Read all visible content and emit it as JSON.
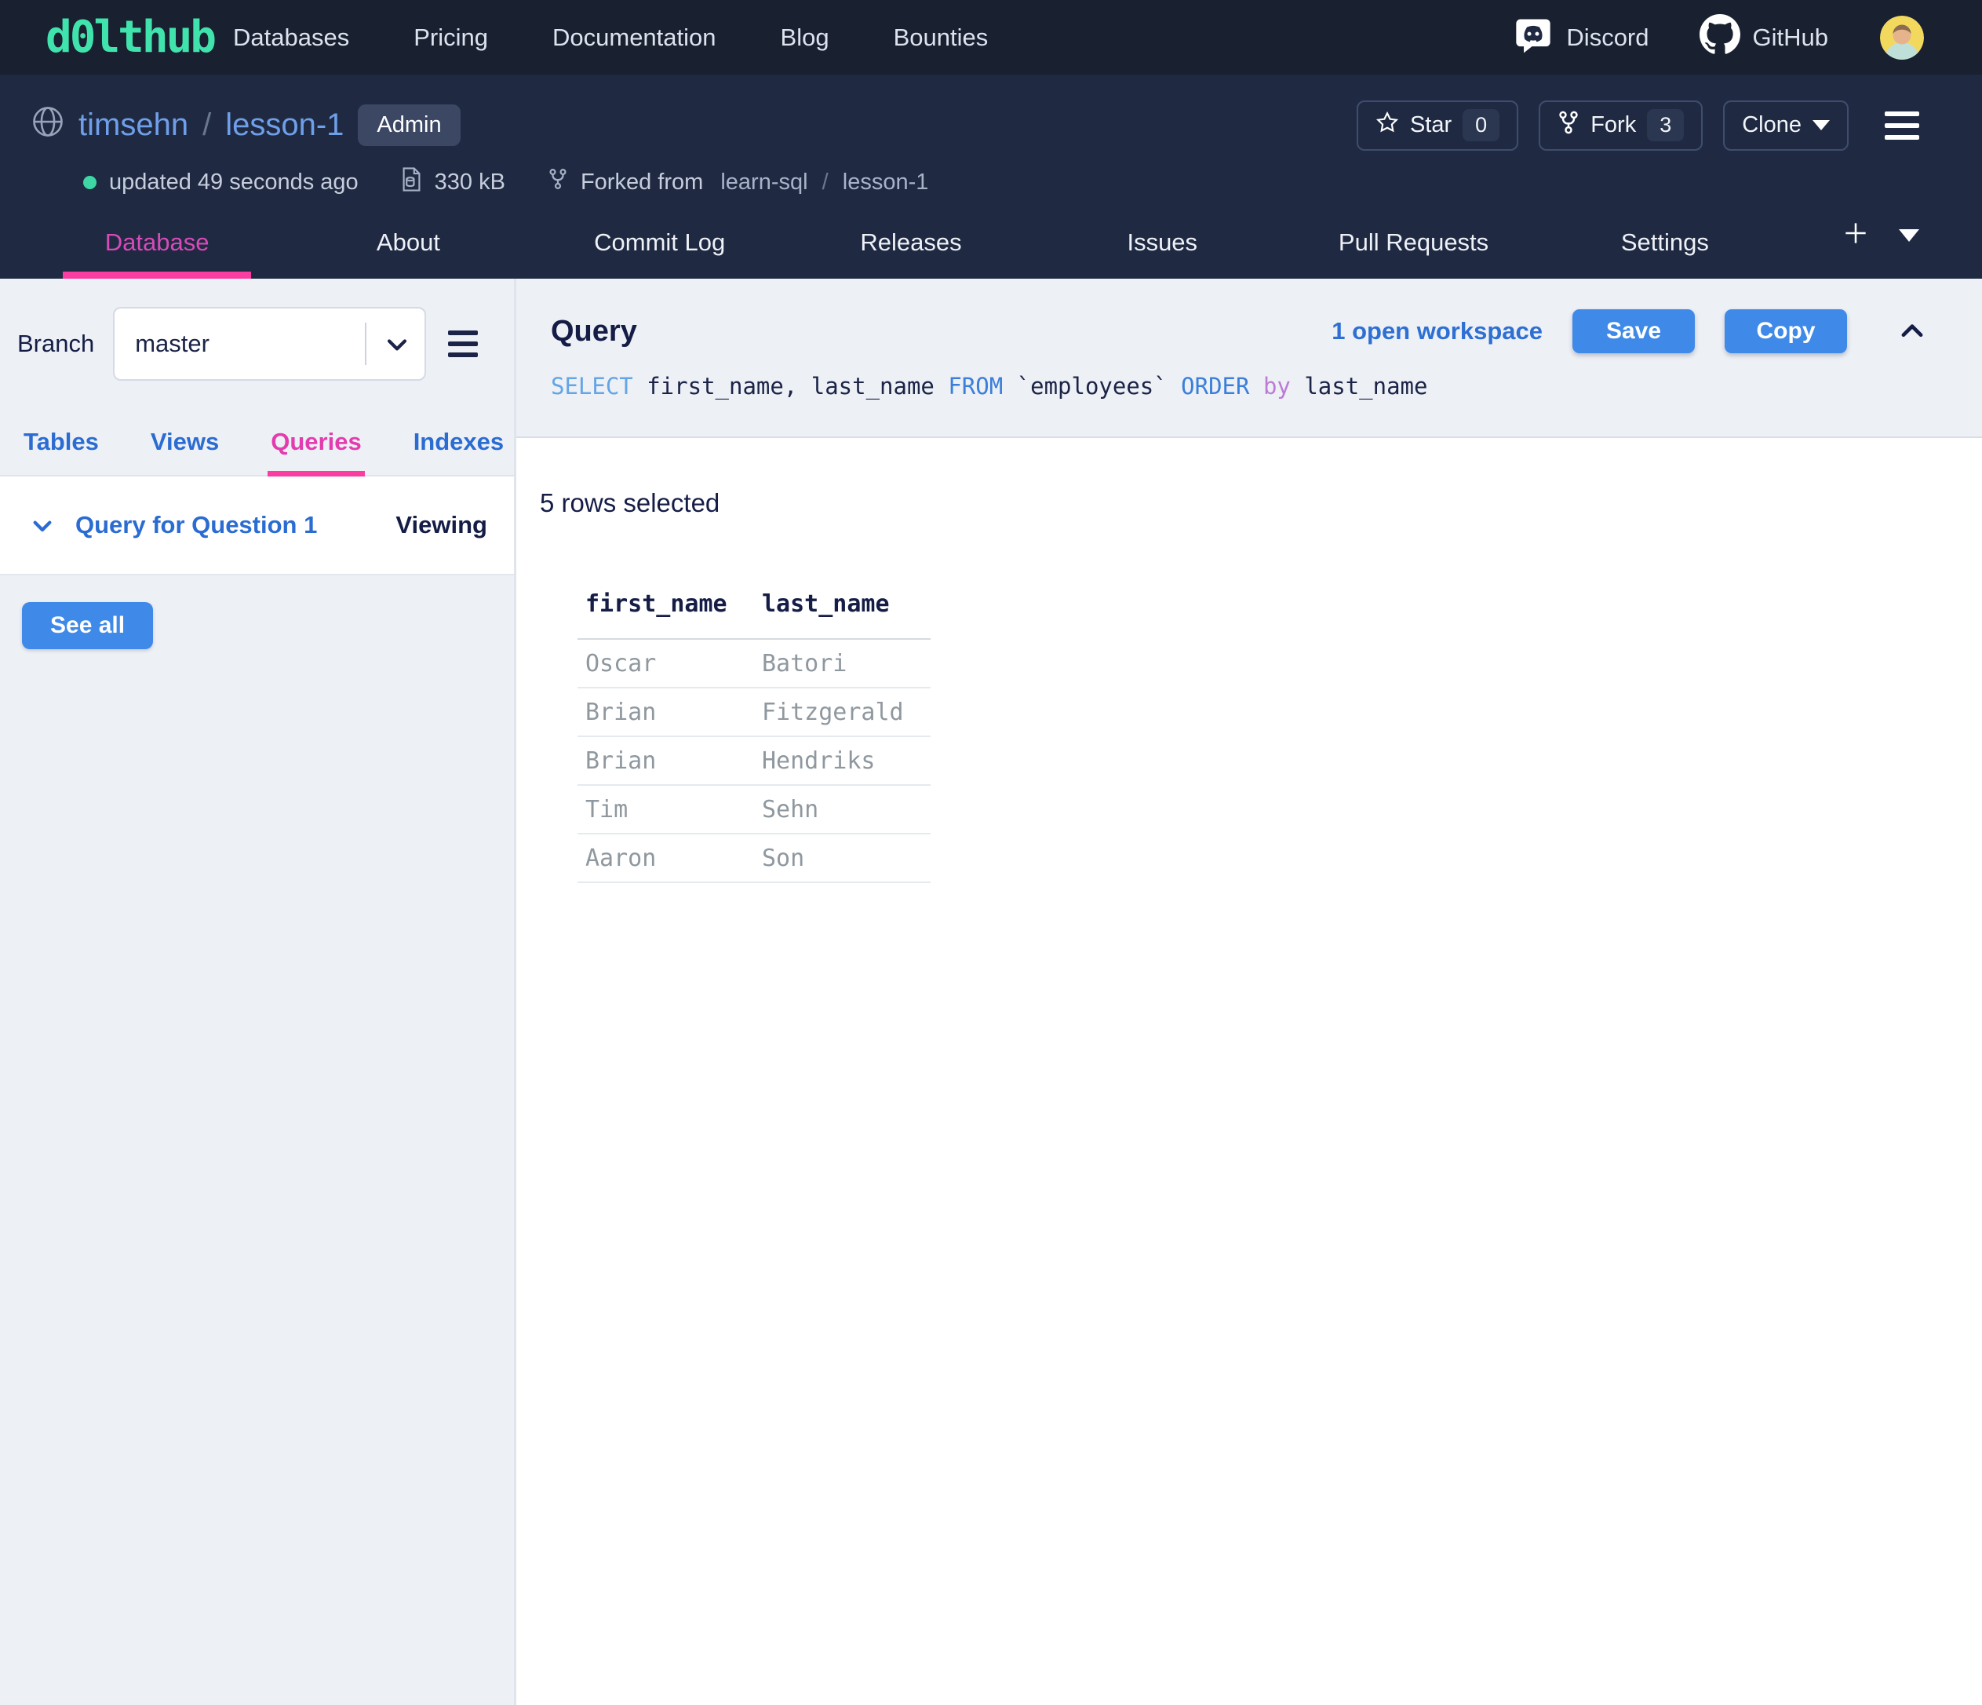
{
  "topnav": {
    "logo": "d0lthub",
    "items": [
      "Databases",
      "Pricing",
      "Documentation",
      "Blog",
      "Bounties"
    ],
    "discord_label": "Discord",
    "github_label": "GitHub"
  },
  "repo": {
    "owner": "timsehn",
    "slash": "/",
    "name": "lesson-1",
    "badge": "Admin",
    "updated": "updated 49 seconds ago",
    "size": "330 kB",
    "forked_prefix": "Forked from",
    "forked_owner": "learn-sql",
    "forked_slash": "/",
    "forked_repo": "lesson-1",
    "star_label": "Star",
    "star_count": "0",
    "fork_label": "Fork",
    "fork_count": "3",
    "clone_label": "Clone"
  },
  "repo_tabs": {
    "items": [
      "Database",
      "About",
      "Commit Log",
      "Releases",
      "Issues",
      "Pull Requests",
      "Settings"
    ],
    "active": "Database"
  },
  "sidebar": {
    "branch_label": "Branch",
    "branch_value": "master",
    "tabs": [
      "Tables",
      "Views",
      "Queries",
      "Indexes"
    ],
    "active_tab": "Queries",
    "query_item": {
      "label": "Query for Question 1",
      "status": "Viewing"
    },
    "see_all": "See all"
  },
  "main": {
    "title": "Query",
    "workspace_note": "1 open workspace",
    "save": "Save",
    "copy": "Copy",
    "sql": "SELECT first_name, last_name FROM `employees` ORDER by last_name",
    "sql_tokens": [
      {
        "text": "SELECT",
        "type": "kw1"
      },
      {
        "text": " first_name, last_name ",
        "type": "plain"
      },
      {
        "text": "FROM",
        "type": "kw2"
      },
      {
        "text": " `employees` ",
        "type": "plain"
      },
      {
        "text": "ORDER",
        "type": "kw2"
      },
      {
        "text": " ",
        "type": "plain"
      },
      {
        "text": "by",
        "type": "kw3"
      },
      {
        "text": " last_name",
        "type": "plain"
      }
    ],
    "rows_selected": "5 rows selected"
  },
  "results_table": {
    "columns": [
      "first_name",
      "last_name"
    ],
    "rows": [
      [
        "Oscar",
        "Batori"
      ],
      [
        "Brian",
        "Fitzgerald"
      ],
      [
        "Brian",
        "Hendriks"
      ],
      [
        "Tim",
        "Sehn"
      ],
      [
        "Aaron",
        "Son"
      ]
    ]
  },
  "colors": {
    "accent_pink": "#fb3da2",
    "brand_teal": "#41e3ad",
    "link_blue": "#2d6fd3",
    "button_blue": "#3f8ae8",
    "header_navy": "#1f2a42",
    "topnav_navy": "#192030",
    "status_green": "#3ed6a4"
  }
}
